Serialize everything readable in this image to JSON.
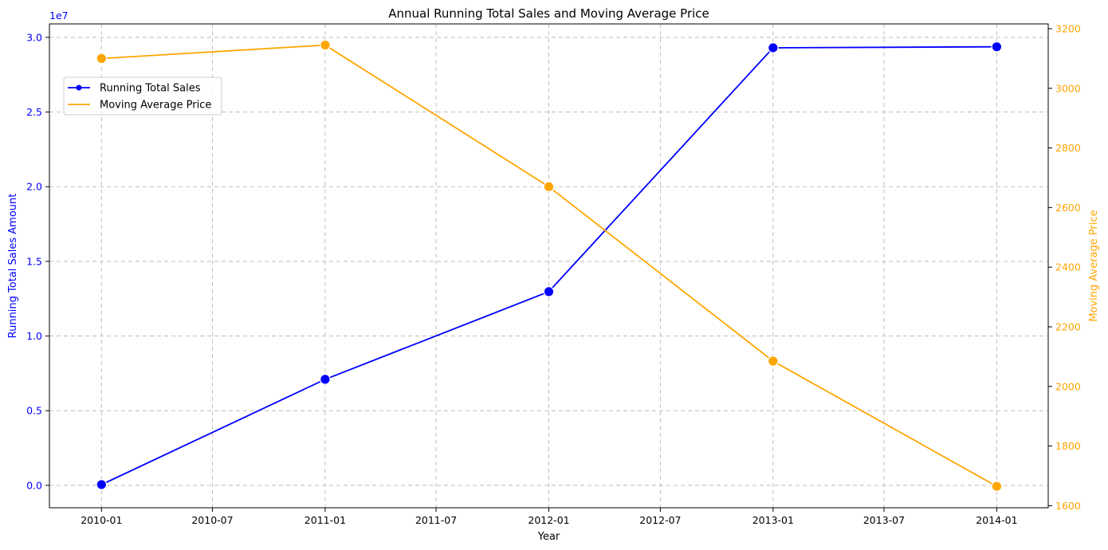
{
  "chart_data": {
    "type": "line",
    "title": "Annual Running Total Sales and Moving Average Price",
    "xlabel": "Year",
    "x": [
      "2010-01-01",
      "2011-01-01",
      "2012-01-01",
      "2013-01-01",
      "2014-01-01"
    ],
    "x_tick_labels": [
      "2010-01",
      "2010-07",
      "2011-01",
      "2011-07",
      "2012-01",
      "2012-07",
      "2013-01",
      "2013-07",
      "2014-01"
    ],
    "x_tick_dates": [
      "2010-01-01",
      "2010-07-01",
      "2011-01-01",
      "2011-07-01",
      "2012-01-01",
      "2012-07-01",
      "2013-01-01",
      "2013-07-01",
      "2014-01-01"
    ],
    "xlim": [
      "2009-10-08",
      "2014-03-26"
    ],
    "grid": true,
    "legend_position": "upper-left",
    "left_axis": {
      "label": "Running Total Sales Amount",
      "ylim": [
        -1500000,
        30900000
      ],
      "ticks": [
        0,
        5000000,
        10000000,
        15000000,
        20000000,
        25000000,
        30000000
      ],
      "tick_labels": [
        "0.0",
        "0.5",
        "1.0",
        "1.5",
        "2.0",
        "2.5",
        "3.0"
      ],
      "offset_label": "1e7",
      "color": "#0000ff"
    },
    "right_axis": {
      "label": "Moving Average Price",
      "ylim": [
        1593,
        3216
      ],
      "ticks": [
        1600,
        1800,
        2000,
        2200,
        2400,
        2600,
        2800,
        3000,
        3200
      ],
      "tick_labels": [
        "1600",
        "1800",
        "2000",
        "2200",
        "2400",
        "2600",
        "2800",
        "3000",
        "3200"
      ],
      "color": "#ffa500"
    },
    "series": [
      {
        "name": "Running Total Sales",
        "axis": "left",
        "color": "#0000ff",
        "marker": "circle",
        "values": [
          50000,
          7100000,
          12970000,
          29300000,
          29370000
        ]
      },
      {
        "name": "Moving Average Price",
        "axis": "right",
        "color": "#ffa500",
        "marker": "circle",
        "values": [
          3100,
          3145,
          2670,
          2085,
          1665
        ]
      }
    ]
  }
}
